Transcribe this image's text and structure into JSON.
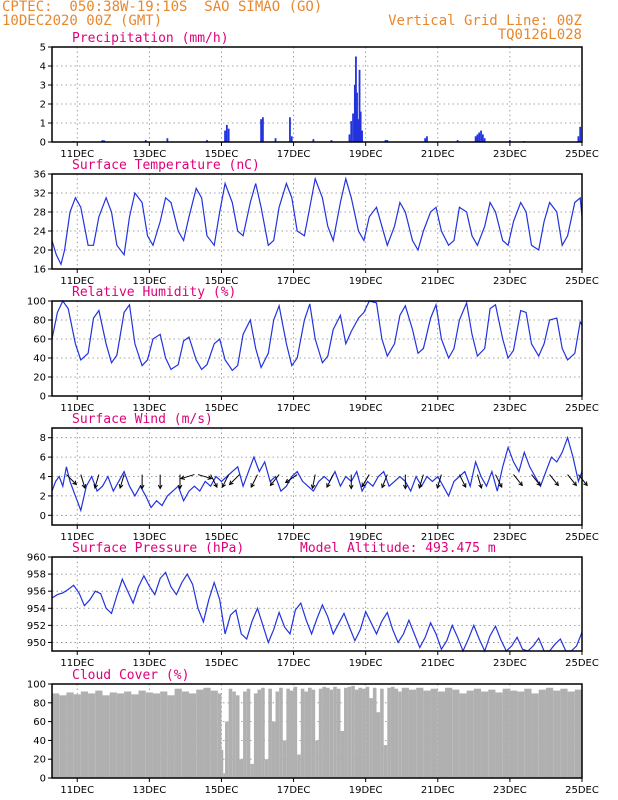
{
  "header": {
    "title": "CPTEC:  050:38W-19:10S  SAO SIMAO (GO)",
    "date": "10DEC2020 00Z (GMT)",
    "grid_note": "Vertical Grid Line: 00Z",
    "code": "TQ0126L028",
    "model_altitude": "Model Altitude: 493.475 m"
  },
  "colors": {
    "header": "#e8872e",
    "title": "#e0007a",
    "line": "#2233dd",
    "bar": "#2233dd",
    "cloud": "#b0b0b0",
    "arrow": "#000000"
  },
  "x_axis": {
    "unit": "day index from 10DEC2020 00Z",
    "range": [
      10.3,
      25
    ],
    "ticks": [
      {
        "x": 11,
        "label": "11DEC"
      },
      {
        "x": 13,
        "label": "13DEC"
      },
      {
        "x": 15,
        "label": "15DEC"
      },
      {
        "x": 17,
        "label": "17DEC"
      },
      {
        "x": 19,
        "label": "19DEC"
      },
      {
        "x": 21,
        "label": "21DEC"
      },
      {
        "x": 23,
        "label": "23DEC"
      },
      {
        "x": 25,
        "label": "25DEC"
      }
    ]
  },
  "chart_data": [
    {
      "type": "bar",
      "title": "Precipitation (mm/h)",
      "ylim": [
        0,
        5
      ],
      "yticks": [
        "0",
        "1",
        "2",
        "3",
        "4",
        "5"
      ],
      "grid": true,
      "x": [
        10.9,
        11.7,
        11.75,
        12.9,
        13.5,
        14.6,
        15.1,
        15.15,
        15.2,
        16.1,
        16.15,
        16.5,
        16.9,
        16.95,
        17.55,
        18.05,
        18.55,
        18.6,
        18.65,
        18.7,
        18.73,
        18.76,
        18.8,
        18.83,
        18.86,
        18.9,
        19.55,
        19.6,
        20.65,
        20.7,
        21.55,
        22.05,
        22.1,
        22.15,
        22.2,
        22.25,
        22.3,
        23.0,
        23.4,
        24.9,
        24.95
      ],
      "values": [
        0.05,
        0.1,
        0.08,
        0.1,
        0.2,
        0.1,
        0.6,
        0.9,
        0.7,
        1.2,
        1.3,
        0.2,
        1.3,
        0.3,
        0.15,
        0.1,
        0.4,
        1.1,
        1.5,
        3.0,
        4.5,
        2.6,
        1.2,
        3.8,
        1.6,
        0.6,
        0.1,
        0.1,
        0.2,
        0.3,
        0.1,
        0.3,
        0.4,
        0.5,
        0.6,
        0.4,
        0.2,
        0.1,
        0.05,
        0.3,
        0.8
      ]
    },
    {
      "type": "line",
      "title": "Surface Temperature (nC)",
      "ylim": [
        16,
        36
      ],
      "yticks": [
        "16",
        "20",
        "24",
        "28",
        "32",
        "36"
      ],
      "grid": true,
      "x": [
        10.3,
        10.42,
        10.55,
        10.65,
        10.8,
        10.95,
        11.1,
        11.3,
        11.45,
        11.6,
        11.8,
        11.95,
        12.1,
        12.3,
        12.45,
        12.6,
        12.8,
        12.95,
        13.1,
        13.3,
        13.45,
        13.6,
        13.8,
        13.95,
        14.1,
        14.3,
        14.45,
        14.6,
        14.8,
        14.95,
        15.1,
        15.3,
        15.45,
        15.6,
        15.8,
        15.95,
        16.1,
        16.3,
        16.45,
        16.6,
        16.8,
        16.95,
        17.1,
        17.3,
        17.45,
        17.6,
        17.8,
        17.95,
        18.1,
        18.3,
        18.45,
        18.6,
        18.8,
        18.95,
        19.1,
        19.3,
        19.45,
        19.6,
        19.8,
        19.95,
        20.1,
        20.3,
        20.45,
        20.6,
        20.8,
        20.95,
        21.1,
        21.3,
        21.45,
        21.6,
        21.8,
        21.95,
        22.1,
        22.3,
        22.45,
        22.6,
        22.8,
        22.95,
        23.1,
        23.3,
        23.45,
        23.6,
        23.8,
        23.95,
        24.1,
        24.3,
        24.45,
        24.6,
        24.8,
        24.95,
        25.0
      ],
      "values": [
        22,
        19,
        17,
        20,
        28,
        31,
        29,
        21,
        21,
        27,
        31,
        28,
        21,
        19,
        27,
        32,
        30,
        23,
        21,
        26,
        31,
        30,
        24,
        22,
        27,
        33,
        31,
        23,
        21,
        28,
        34,
        30,
        24,
        23,
        30,
        34,
        29,
        21,
        22,
        29,
        34,
        31,
        24,
        23,
        29,
        35,
        31,
        25,
        22,
        30,
        35,
        31,
        24,
        22,
        27,
        29,
        25,
        21,
        25,
        30,
        28,
        22,
        20,
        24,
        28,
        29,
        24,
        21,
        22,
        29,
        28,
        23,
        21,
        25,
        30,
        28,
        22,
        21,
        26,
        30,
        28,
        21,
        20,
        26,
        30,
        28,
        21,
        23,
        30,
        31,
        27
      ]
    },
    {
      "type": "line",
      "title": "Relative Humidity (%)",
      "ylim": [
        0,
        100
      ],
      "yticks": [
        "0",
        "20",
        "40",
        "60",
        "80",
        "100"
      ],
      "grid": true,
      "x": [
        10.3,
        10.45,
        10.6,
        10.75,
        10.95,
        11.1,
        11.3,
        11.45,
        11.6,
        11.8,
        11.95,
        12.1,
        12.3,
        12.45,
        12.6,
        12.8,
        12.95,
        13.1,
        13.3,
        13.45,
        13.6,
        13.8,
        13.95,
        14.1,
        14.3,
        14.45,
        14.6,
        14.8,
        14.95,
        15.1,
        15.3,
        15.45,
        15.6,
        15.8,
        15.95,
        16.1,
        16.3,
        16.45,
        16.6,
        16.8,
        16.95,
        17.1,
        17.3,
        17.45,
        17.6,
        17.8,
        17.95,
        18.1,
        18.3,
        18.45,
        18.6,
        18.8,
        18.95,
        19.1,
        19.3,
        19.45,
        19.6,
        19.8,
        19.95,
        20.1,
        20.3,
        20.45,
        20.6,
        20.8,
        20.95,
        21.1,
        21.3,
        21.45,
        21.6,
        21.8,
        21.95,
        22.1,
        22.3,
        22.45,
        22.6,
        22.8,
        22.95,
        23.1,
        23.3,
        23.45,
        23.6,
        23.8,
        23.95,
        24.1,
        24.3,
        24.45,
        24.6,
        24.8,
        24.95,
        25.0
      ],
      "values": [
        60,
        88,
        100,
        92,
        55,
        38,
        45,
        82,
        90,
        55,
        35,
        43,
        88,
        96,
        55,
        32,
        38,
        60,
        65,
        40,
        28,
        33,
        58,
        62,
        38,
        28,
        33,
        55,
        60,
        38,
        27,
        32,
        65,
        80,
        50,
        30,
        45,
        80,
        95,
        55,
        32,
        40,
        80,
        97,
        60,
        35,
        42,
        70,
        85,
        55,
        68,
        82,
        88,
        100,
        98,
        60,
        42,
        55,
        85,
        95,
        70,
        45,
        50,
        82,
        96,
        60,
        40,
        50,
        80,
        98,
        65,
        42,
        50,
        92,
        96,
        60,
        40,
        48,
        90,
        88,
        55,
        42,
        55,
        80,
        82,
        50,
        38,
        45,
        78,
        75
      ]
    },
    {
      "type": "line",
      "title": "Surface Wind (m/s)",
      "ylim": [
        -1,
        9
      ],
      "yticks": [
        "0",
        "2",
        "4",
        "6",
        "8"
      ],
      "grid": true,
      "x": [
        10.3,
        10.4,
        10.5,
        10.6,
        10.7,
        10.8,
        10.95,
        11.1,
        11.25,
        11.4,
        11.55,
        11.7,
        11.85,
        12.0,
        12.15,
        12.3,
        12.45,
        12.6,
        12.75,
        12.9,
        13.05,
        13.2,
        13.35,
        13.5,
        13.65,
        13.8,
        13.95,
        14.1,
        14.25,
        14.4,
        14.55,
        14.7,
        14.85,
        15.0,
        15.15,
        15.3,
        15.45,
        15.6,
        15.75,
        15.9,
        16.05,
        16.2,
        16.35,
        16.5,
        16.65,
        16.8,
        16.95,
        17.1,
        17.25,
        17.4,
        17.55,
        17.7,
        17.85,
        18.0,
        18.15,
        18.3,
        18.45,
        18.6,
        18.75,
        18.9,
        19.05,
        19.2,
        19.35,
        19.5,
        19.65,
        19.8,
        19.95,
        20.1,
        20.25,
        20.4,
        20.55,
        20.7,
        20.85,
        21.0,
        21.15,
        21.3,
        21.45,
        21.6,
        21.75,
        21.9,
        22.05,
        22.2,
        22.35,
        22.5,
        22.65,
        22.8,
        22.95,
        23.1,
        23.25,
        23.4,
        23.55,
        23.7,
        23.85,
        24.0,
        24.15,
        24.3,
        24.45,
        24.6,
        24.75,
        24.9,
        25.0
      ],
      "values": [
        2.5,
        3.5,
        4.0,
        3.0,
        5.0,
        3.5,
        2.0,
        0.5,
        3.0,
        4.0,
        2.5,
        3.0,
        4.0,
        2.5,
        3.5,
        4.5,
        3.0,
        2.0,
        3.0,
        2.0,
        0.8,
        1.5,
        1.0,
        2.0,
        2.5,
        3.0,
        1.5,
        2.5,
        3.0,
        2.5,
        3.5,
        3.0,
        4.0,
        3.5,
        4.0,
        4.5,
        5.0,
        3.0,
        4.5,
        6.0,
        4.5,
        5.5,
        3.5,
        4.0,
        2.5,
        3.0,
        4.0,
        4.5,
        3.5,
        3.0,
        2.5,
        3.5,
        4.0,
        3.5,
        4.5,
        3.0,
        4.0,
        3.5,
        4.5,
        2.5,
        3.5,
        3.0,
        4.0,
        4.5,
        3.0,
        3.5,
        4.0,
        3.5,
        2.5,
        4.0,
        3.0,
        4.0,
        3.5,
        4.0,
        3.0,
        2.0,
        3.5,
        4.0,
        4.5,
        3.0,
        5.5,
        4.0,
        3.0,
        4.5,
        2.5,
        5.0,
        7.0,
        5.5,
        4.5,
        6.5,
        5.0,
        4.0,
        3.0,
        4.5,
        6.0,
        5.5,
        6.5,
        8.0,
        6.0,
        3.5,
        4.5
      ],
      "wind_barbs": [
        {
          "x": 10.7,
          "dx": 1,
          "dy": 1
        },
        {
          "x": 11.1,
          "dx": 0.3,
          "dy": 1
        },
        {
          "x": 11.6,
          "dx": -0.3,
          "dy": 1
        },
        {
          "x": 12.3,
          "dx": -0.3,
          "dy": 1
        },
        {
          "x": 12.8,
          "dx": 0,
          "dy": 1
        },
        {
          "x": 13.3,
          "dx": 0,
          "dy": 1
        },
        {
          "x": 13.85,
          "dx": 0,
          "dy": 1
        },
        {
          "x": 14.25,
          "dx": -1,
          "dy": 0.3
        },
        {
          "x": 14.35,
          "dx": 1,
          "dy": 0.3
        },
        {
          "x": 14.7,
          "dx": 0.5,
          "dy": 1
        },
        {
          "x": 15.2,
          "dx": -0.5,
          "dy": 1
        },
        {
          "x": 15.5,
          "dx": -1,
          "dy": 1
        },
        {
          "x": 16.0,
          "dx": -0.5,
          "dy": 1
        },
        {
          "x": 16.6,
          "dx": -0.8,
          "dy": 1
        },
        {
          "x": 17.1,
          "dx": -1,
          "dy": 0.7
        },
        {
          "x": 17.6,
          "dx": -0.2,
          "dy": 1
        },
        {
          "x": 18.1,
          "dx": -0.5,
          "dy": 1
        },
        {
          "x": 18.6,
          "dx": 0,
          "dy": 1
        },
        {
          "x": 19.1,
          "dx": -0.6,
          "dy": 1
        },
        {
          "x": 19.6,
          "dx": -0.4,
          "dy": 1
        },
        {
          "x": 20.1,
          "dx": 0,
          "dy": 1
        },
        {
          "x": 20.6,
          "dx": -0.3,
          "dy": 1
        },
        {
          "x": 21.1,
          "dx": -0.3,
          "dy": 1
        },
        {
          "x": 21.6,
          "dx": 0.5,
          "dy": 1
        },
        {
          "x": 22.1,
          "dx": 0.3,
          "dy": 1
        },
        {
          "x": 22.6,
          "dx": 0.5,
          "dy": 1
        },
        {
          "x": 23.1,
          "dx": 0.8,
          "dy": 1
        },
        {
          "x": 23.6,
          "dx": 0.8,
          "dy": 1
        },
        {
          "x": 24.1,
          "dx": 0.8,
          "dy": 1
        },
        {
          "x": 24.6,
          "dx": 0.8,
          "dy": 1
        },
        {
          "x": 24.9,
          "dx": 0.8,
          "dy": 1
        }
      ]
    },
    {
      "type": "line",
      "title": "Surface Pressure (hPa)",
      "ylim": [
        949,
        960
      ],
      "yticks": [
        "950",
        "952",
        "954",
        "956",
        "958",
        "960"
      ],
      "grid": true,
      "x": [
        10.3,
        10.45,
        10.6,
        10.75,
        10.9,
        11.05,
        11.2,
        11.35,
        11.5,
        11.65,
        11.8,
        11.95,
        12.1,
        12.25,
        12.4,
        12.55,
        12.7,
        12.85,
        13.0,
        13.15,
        13.3,
        13.45,
        13.6,
        13.75,
        13.9,
        14.05,
        14.2,
        14.35,
        14.5,
        14.65,
        14.8,
        14.95,
        15.1,
        15.25,
        15.4,
        15.55,
        15.7,
        15.85,
        16.0,
        16.15,
        16.3,
        16.45,
        16.6,
        16.75,
        16.9,
        17.05,
        17.2,
        17.35,
        17.5,
        17.65,
        17.8,
        17.95,
        18.1,
        18.25,
        18.4,
        18.55,
        18.7,
        18.85,
        19.0,
        19.15,
        19.3,
        19.45,
        19.6,
        19.75,
        19.9,
        20.05,
        20.2,
        20.35,
        20.5,
        20.65,
        20.8,
        20.95,
        21.1,
        21.25,
        21.4,
        21.55,
        21.7,
        21.85,
        22.0,
        22.15,
        22.3,
        22.45,
        22.6,
        22.75,
        22.9,
        23.05,
        23.2,
        23.35,
        23.5,
        23.65,
        23.8,
        23.95,
        24.1,
        24.25,
        24.4,
        24.55,
        24.7,
        24.85,
        25.0
      ],
      "values": [
        955.2,
        955.6,
        955.8,
        956.2,
        956.7,
        955.8,
        954.3,
        955.0,
        956.0,
        955.7,
        954.0,
        953.4,
        955.5,
        957.4,
        956.0,
        954.6,
        956.5,
        957.8,
        956.6,
        955.6,
        957.5,
        958.2,
        956.5,
        955.6,
        957.0,
        958.0,
        956.8,
        954.0,
        952.4,
        955.0,
        957.0,
        955.0,
        951.0,
        953.2,
        953.8,
        951.0,
        950.4,
        952.5,
        954.0,
        952.0,
        950.0,
        951.5,
        953.5,
        951.8,
        951.0,
        953.8,
        954.6,
        952.6,
        951.0,
        952.8,
        954.4,
        953.0,
        951.0,
        952.2,
        953.4,
        951.8,
        950.2,
        951.5,
        953.6,
        952.3,
        951.0,
        952.5,
        953.5,
        951.5,
        950.0,
        951.0,
        952.6,
        951.0,
        949.4,
        950.6,
        952.3,
        951.0,
        949.2,
        950.2,
        952.0,
        950.6,
        949.0,
        950.4,
        952.0,
        950.4,
        949.0,
        950.8,
        951.9,
        950.3,
        949.0,
        949.6,
        950.6,
        949.2,
        948.4,
        949.6,
        950.5,
        949.0,
        948.6,
        949.8,
        950.4,
        948.8,
        948.2,
        949.6,
        951.2
      ]
    },
    {
      "type": "area",
      "title": "Cloud Cover (%)",
      "ylim": [
        0,
        100
      ],
      "yticks": [
        "0",
        "20",
        "40",
        "60",
        "80",
        "100"
      ],
      "grid": true,
      "x": [
        10.3,
        10.5,
        10.7,
        10.9,
        11.1,
        11.3,
        11.5,
        11.7,
        11.9,
        12.1,
        12.3,
        12.5,
        12.7,
        12.9,
        13.1,
        13.3,
        13.5,
        13.7,
        13.9,
        14.1,
        14.3,
        14.5,
        14.7,
        14.9,
        15.0,
        15.05,
        15.1,
        15.2,
        15.3,
        15.4,
        15.5,
        15.6,
        15.7,
        15.8,
        15.9,
        16.0,
        16.1,
        16.2,
        16.3,
        16.4,
        16.5,
        16.6,
        16.7,
        16.8,
        16.9,
        17.0,
        17.1,
        17.2,
        17.3,
        17.4,
        17.5,
        17.6,
        17.7,
        17.8,
        17.9,
        18.0,
        18.1,
        18.2,
        18.3,
        18.4,
        18.5,
        18.6,
        18.7,
        18.8,
        18.9,
        19.0,
        19.1,
        19.2,
        19.3,
        19.4,
        19.5,
        19.6,
        19.7,
        19.8,
        19.9,
        20.0,
        20.2,
        20.4,
        20.6,
        20.8,
        21.0,
        21.2,
        21.4,
        21.6,
        21.8,
        22.0,
        22.2,
        22.4,
        22.6,
        22.8,
        23.0,
        23.2,
        23.4,
        23.6,
        23.8,
        24.0,
        24.2,
        24.4,
        24.6,
        24.8,
        25.0
      ],
      "values": [
        90,
        88,
        91,
        89,
        92,
        90,
        93,
        88,
        91,
        90,
        92,
        89,
        93,
        91,
        90,
        92,
        88,
        95,
        92,
        90,
        94,
        96,
        93,
        90,
        30,
        5,
        60,
        95,
        92,
        88,
        20,
        92,
        95,
        15,
        90,
        94,
        96,
        20,
        95,
        60,
        92,
        96,
        40,
        95,
        93,
        97,
        25,
        95,
        92,
        96,
        94,
        40,
        95,
        97,
        96,
        94,
        97,
        95,
        50,
        96,
        97,
        98,
        94,
        96,
        95,
        97,
        85,
        96,
        70,
        95,
        35,
        96,
        97,
        95,
        92,
        96,
        94,
        96,
        93,
        95,
        92,
        96,
        94,
        90,
        93,
        95,
        92,
        94,
        91,
        95,
        93,
        92,
        95,
        90,
        94,
        96,
        93,
        95,
        92,
        94,
        93
      ]
    }
  ]
}
